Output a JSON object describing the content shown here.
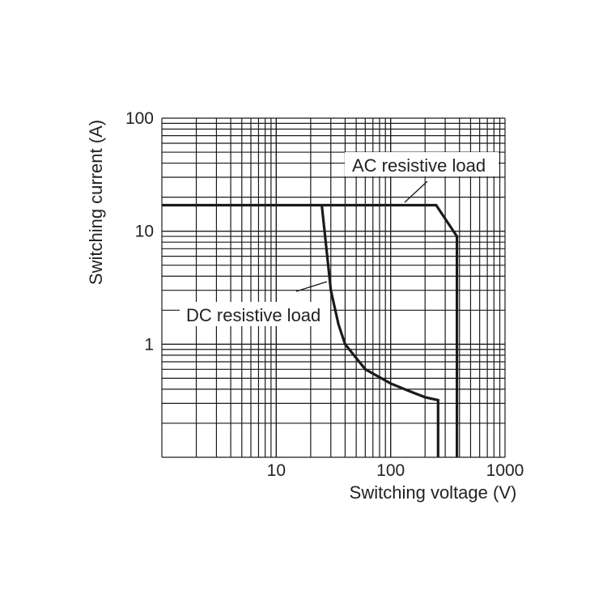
{
  "chart_data": {
    "type": "line",
    "title": "",
    "xlabel": "Switching voltage (V)",
    "ylabel": "Switching current (A)",
    "x_scale": "log",
    "y_scale": "log",
    "xlim": [
      1,
      1000
    ],
    "ylim": [
      0.1,
      100
    ],
    "grid": true,
    "x_ticks": [
      {
        "value": 10,
        "label": "10"
      },
      {
        "value": 100,
        "label": "100"
      },
      {
        "value": 1000,
        "label": "1000"
      }
    ],
    "y_ticks": [
      {
        "value": 100,
        "label": "100"
      },
      {
        "value": 10,
        "label": "10"
      },
      {
        "value": 1,
        "label": "1"
      }
    ],
    "series": [
      {
        "name": "AC resistive load",
        "points": [
          [
            1,
            17
          ],
          [
            250,
            17
          ],
          [
            380,
            9
          ],
          [
            380,
            0.1
          ]
        ]
      },
      {
        "name": "DC resistive load",
        "points": [
          [
            25,
            17
          ],
          [
            30,
            3
          ],
          [
            35,
            1.5
          ],
          [
            40,
            1.0
          ],
          [
            60,
            0.6
          ],
          [
            100,
            0.45
          ],
          [
            150,
            0.38
          ],
          [
            200,
            0.34
          ],
          [
            260,
            0.32
          ],
          [
            260,
            0.1
          ]
        ]
      }
    ]
  }
}
